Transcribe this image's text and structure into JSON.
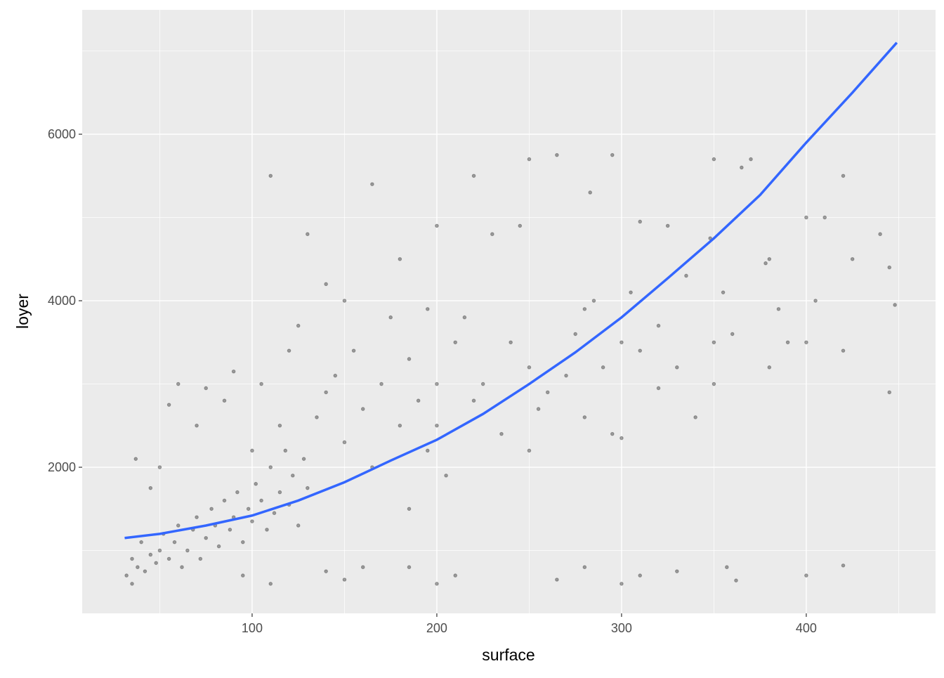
{
  "chart_data": {
    "type": "scatter",
    "x_label": "surface",
    "y_label": "loyer",
    "xlim": [
      8,
      470
    ],
    "ylim": [
      245,
      7494
    ],
    "xticks": [
      100,
      200,
      300,
      400
    ],
    "yticks": [
      2000,
      4000,
      6000
    ],
    "x_minor_grid": [
      50,
      150,
      250,
      350,
      450
    ],
    "y_minor_grid": [
      1000,
      3000,
      5000,
      7000
    ],
    "grid": true,
    "background": "#EBEBEB",
    "point_color": "#000000",
    "point_opacity": 0.35,
    "x": [
      32,
      35,
      38,
      40,
      42,
      45,
      48,
      50,
      52,
      55,
      58,
      60,
      62,
      65,
      68,
      70,
      72,
      75,
      78,
      80,
      82,
      85,
      88,
      90,
      92,
      95,
      98,
      100,
      102,
      105,
      108,
      110,
      112,
      115,
      118,
      120,
      122,
      125,
      128,
      130,
      60,
      55,
      75,
      90,
      37,
      45,
      35,
      50,
      70,
      85,
      100,
      105,
      110,
      115,
      120,
      125,
      130,
      135,
      140,
      140,
      145,
      150,
      150,
      155,
      160,
      165,
      165,
      170,
      175,
      180,
      180,
      185,
      185,
      190,
      195,
      195,
      200,
      200,
      200,
      200,
      205,
      210,
      215,
      220,
      220,
      225,
      230,
      235,
      240,
      245,
      250,
      250,
      250,
      255,
      260,
      265,
      270,
      275,
      280,
      280,
      285,
      290,
      295,
      295,
      300,
      300,
      300,
      305,
      310,
      320,
      325,
      330,
      335,
      340,
      350,
      350,
      350,
      355,
      360,
      365,
      370,
      380,
      380,
      385,
      390,
      400,
      400,
      400,
      405,
      410,
      420,
      420,
      425,
      440,
      445,
      448,
      445,
      357,
      330,
      280,
      265,
      160,
      150,
      210,
      95,
      110,
      140,
      185,
      310,
      362,
      420,
      283,
      310,
      348,
      378,
      320
    ],
    "y": [
      700,
      900,
      800,
      1100,
      750,
      950,
      850,
      1000,
      1200,
      900,
      1100,
      1300,
      800,
      1000,
      1250,
      1400,
      900,
      1150,
      1500,
      1300,
      1050,
      1600,
      1250,
      1400,
      1700,
      1100,
      1500,
      1350,
      1800,
      1600,
      1250,
      2000,
      1450,
      1700,
      2200,
      1550,
      1900,
      1300,
      2100,
      1750,
      3000,
      2750,
      2950,
      3150,
      2100,
      1750,
      600,
      2000,
      2500,
      2800,
      2200,
      3000,
      5500,
      2500,
      3400,
      3700,
      4800,
      2600,
      4200,
      2900,
      3100,
      2300,
      4000,
      3400,
      2700,
      5400,
      2000,
      3000,
      3800,
      2500,
      4500,
      1500,
      3300,
      2800,
      2200,
      3900,
      3000,
      2500,
      4900,
      600,
      1900,
      3500,
      3800,
      2800,
      5500,
      3000,
      4800,
      2400,
      3500,
      4900,
      3200,
      2200,
      5700,
      2700,
      2900,
      5750,
      3100,
      3600,
      2600,
      3900,
      4000,
      3200,
      2400,
      5750,
      3500,
      2350,
      600,
      4100,
      3400,
      3700,
      4900,
      3200,
      4300,
      2600,
      3000,
      3500,
      5700,
      4100,
      3600,
      5600,
      5700,
      3200,
      4500,
      3900,
      3500,
      5000,
      3500,
      700,
      4000,
      5000,
      3400,
      5500,
      4500,
      4800,
      4400,
      3950,
      2900,
      800,
      750,
      800,
      650,
      800,
      650,
      700,
      700,
      600,
      750,
      800,
      700,
      640,
      820,
      5300,
      4950,
      4750,
      4450,
      2950
    ],
    "smooth": {
      "color": "#3366FF",
      "x": [
        31,
        50,
        75,
        100,
        125,
        150,
        175,
        200,
        225,
        250,
        275,
        300,
        325,
        350,
        375,
        400,
        425,
        449
      ],
      "y": [
        1150,
        1200,
        1300,
        1420,
        1600,
        1820,
        2080,
        2330,
        2640,
        3000,
        3380,
        3800,
        4270,
        4750,
        5270,
        5900,
        6500,
        7100
      ]
    }
  }
}
